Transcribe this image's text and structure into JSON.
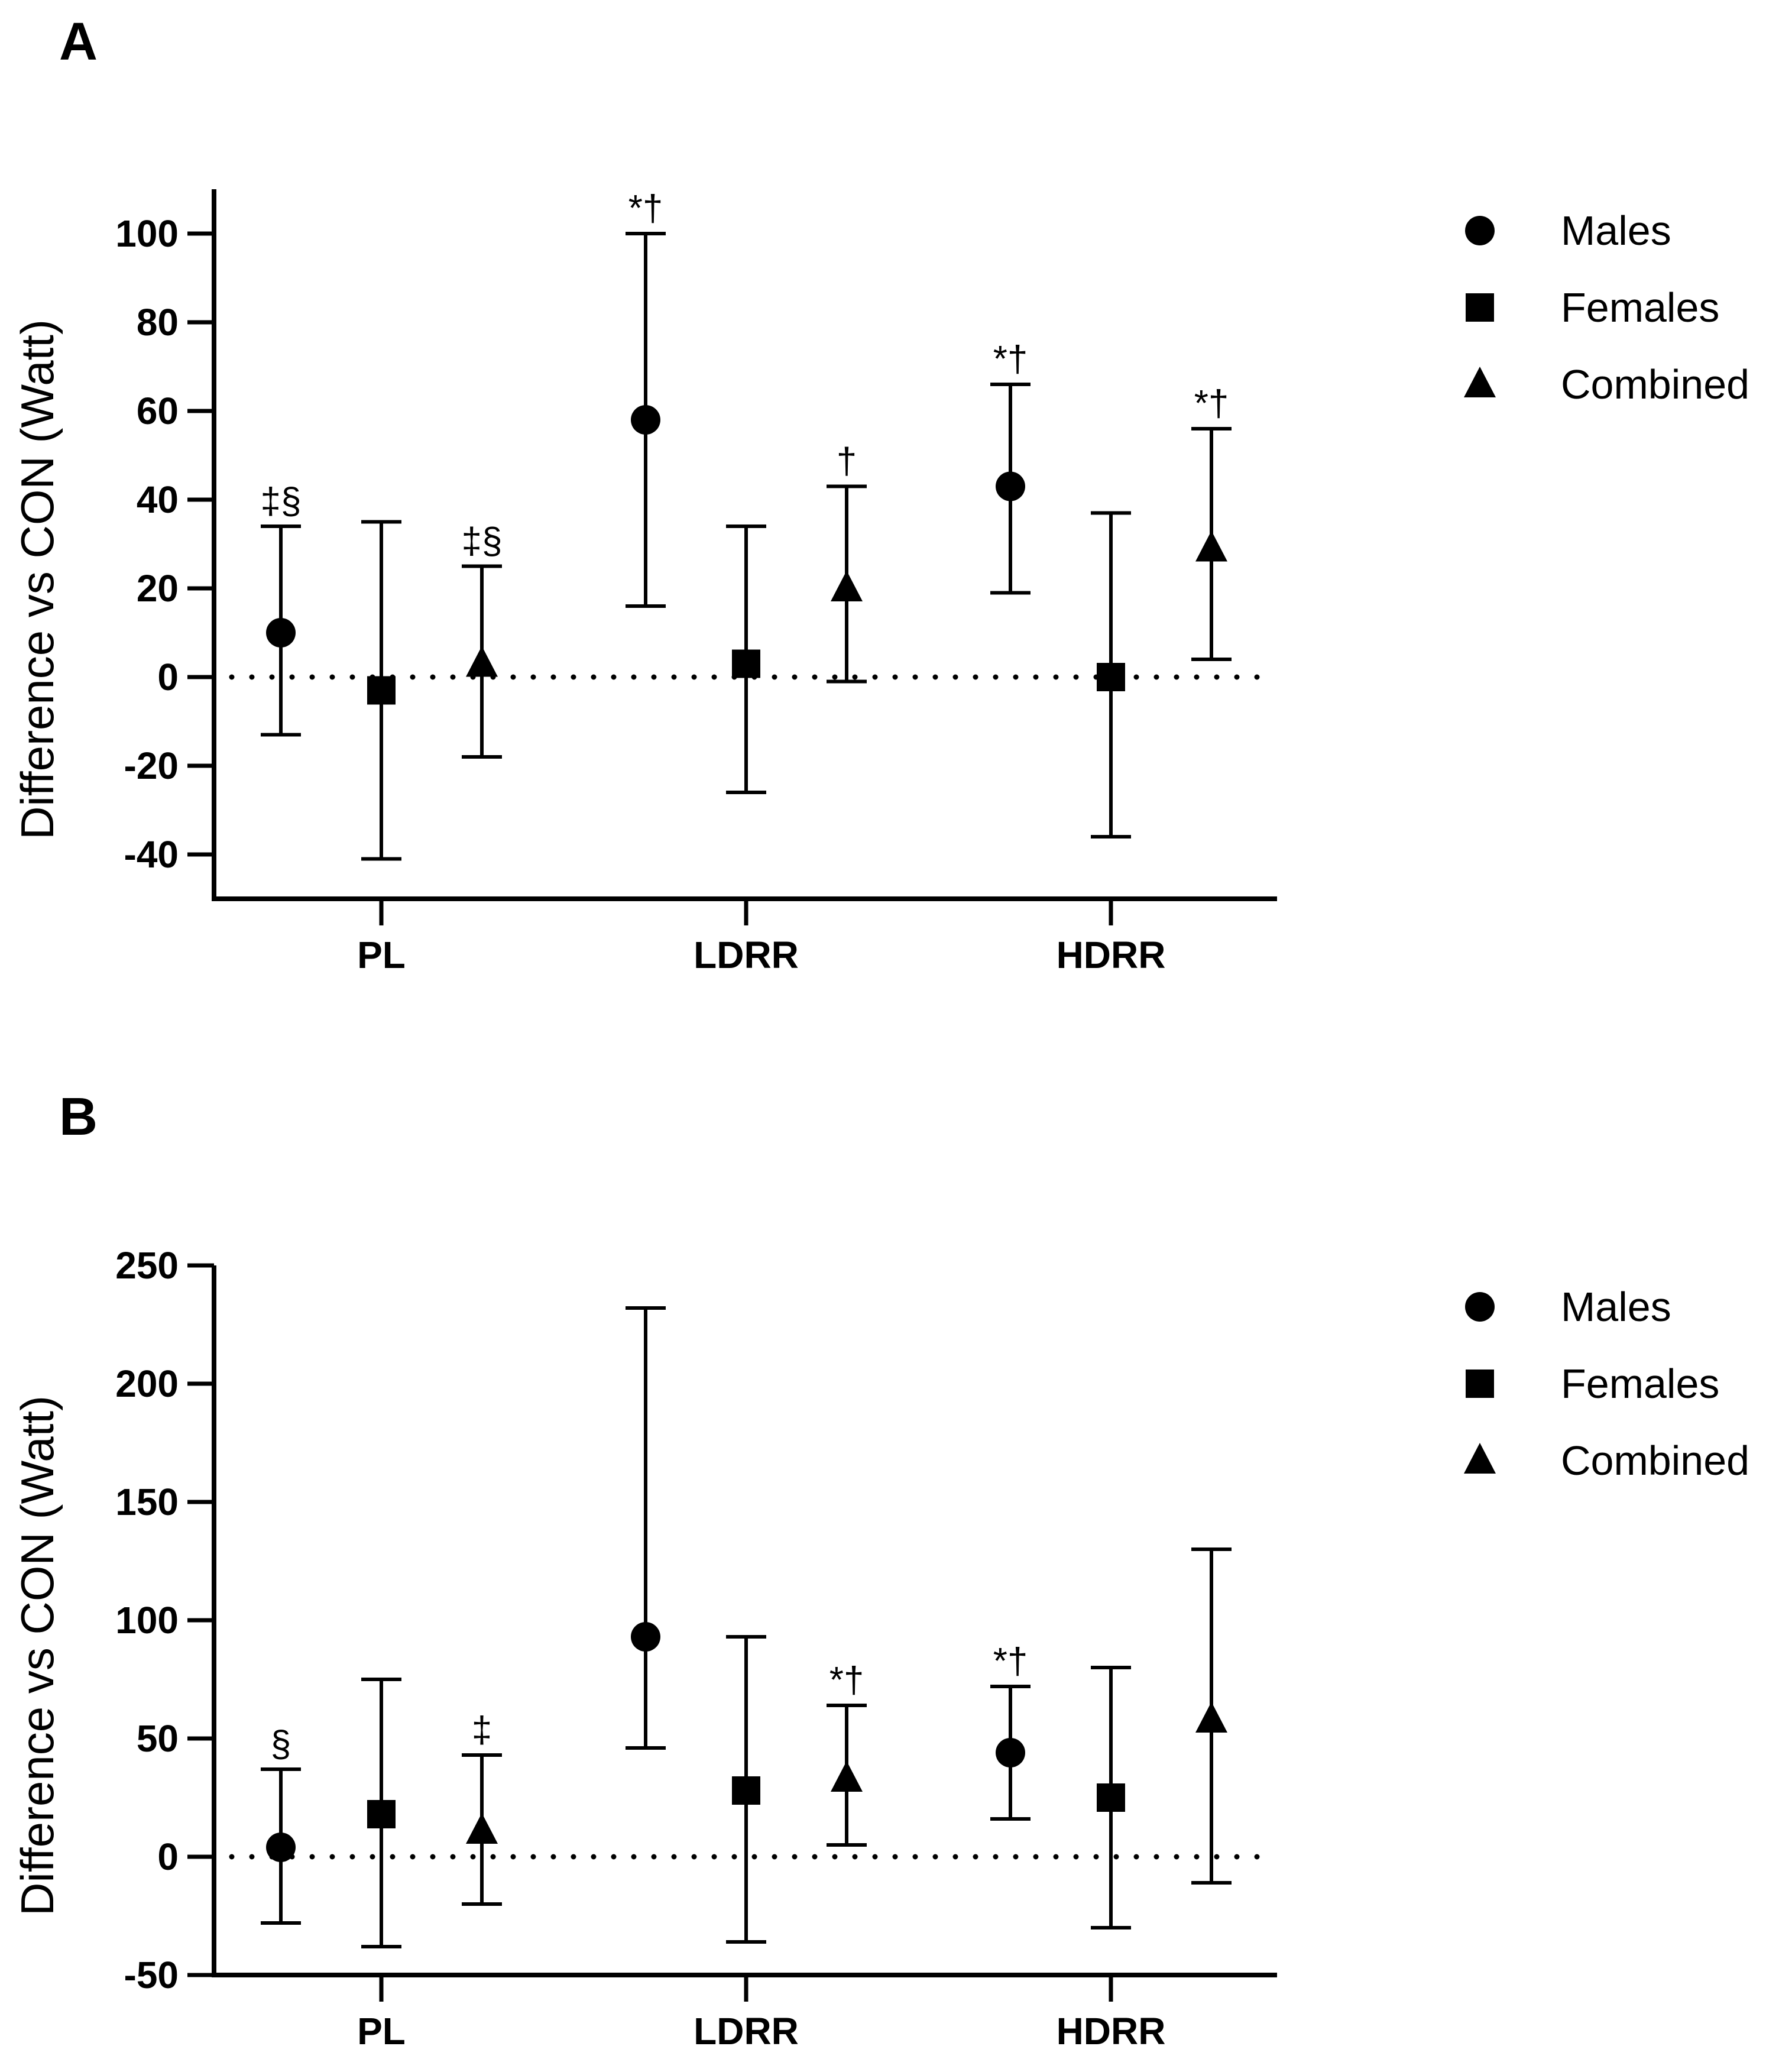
{
  "chart_data": [
    {
      "panel": "A",
      "type": "scatter",
      "ylabel": "Difference vs CON (Watt)",
      "xlabel": "",
      "ylim": [
        -50,
        110
      ],
      "yticks": [
        -40,
        -20,
        0,
        20,
        40,
        60,
        80,
        100
      ],
      "ytick_labels": [
        "-40",
        "-20",
        "0",
        "20",
        "40",
        "60",
        "80",
        "100"
      ],
      "categories": [
        "PL",
        "LDRR",
        "HDRR"
      ],
      "reference_line": 0,
      "legend": [
        "Males",
        "Females",
        "Combined"
      ],
      "series": [
        {
          "name": "Males",
          "marker": "circle",
          "values": [
            10,
            58,
            43
          ],
          "lower": [
            -13,
            16,
            19
          ],
          "upper": [
            34,
            100,
            66
          ],
          "annotations": [
            "‡§",
            "*†",
            "*†"
          ]
        },
        {
          "name": "Females",
          "marker": "square",
          "values": [
            -3,
            3,
            0
          ],
          "lower": [
            -41,
            -26,
            -36
          ],
          "upper": [
            35,
            34,
            37
          ],
          "annotations": [
            "",
            "",
            ""
          ]
        },
        {
          "name": "Combined",
          "marker": "triangle",
          "values": [
            3,
            20,
            29
          ],
          "lower": [
            -18,
            -1,
            4
          ],
          "upper": [
            25,
            43,
            56
          ],
          "annotations": [
            "‡§",
            "†",
            "*†"
          ]
        }
      ]
    },
    {
      "panel": "B",
      "type": "scatter",
      "ylabel": "Difference vs CON (Watt)",
      "xlabel": "",
      "ylim": [
        -50,
        250
      ],
      "yticks": [
        -50,
        0,
        50,
        100,
        150,
        200,
        250
      ],
      "ytick_labels": [
        "-50",
        "0",
        "50",
        "100",
        "150",
        "200",
        "250"
      ],
      "categories": [
        "PL",
        "LDRR",
        "HDRR"
      ],
      "reference_line": 0,
      "legend": [
        "Males",
        "Females",
        "Combined"
      ],
      "series": [
        {
          "name": "Males",
          "marker": "circle",
          "values": [
            4,
            93,
            44
          ],
          "lower": [
            -28,
            46,
            16
          ],
          "upper": [
            37,
            232,
            72
          ],
          "annotations": [
            "§",
            "",
            "*†"
          ]
        },
        {
          "name": "Females",
          "marker": "square",
          "values": [
            18,
            28,
            25
          ],
          "lower": [
            -38,
            -36,
            -30
          ],
          "upper": [
            75,
            93,
            80
          ],
          "annotations": [
            "",
            "",
            ""
          ]
        },
        {
          "name": "Combined",
          "marker": "triangle",
          "values": [
            11,
            33,
            58
          ],
          "lower": [
            -20,
            5,
            -11
          ],
          "upper": [
            43,
            64,
            130
          ],
          "annotations": [
            "‡",
            "*†",
            ""
          ]
        }
      ]
    }
  ]
}
